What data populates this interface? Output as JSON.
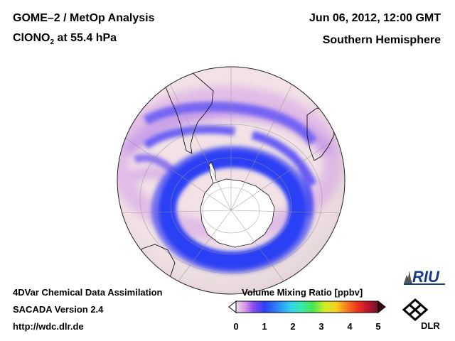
{
  "header": {
    "title": "GOME–2 / MetOp Analysis",
    "species_prefix": "ClONO",
    "species_subscript": "2",
    "species_suffix": " at 55.4 hPa",
    "date": "Jun 06, 2012, 12:00 GMT",
    "region": "Southern Hemisphere"
  },
  "footer": {
    "line1": "4DVar Chemical Data Assimilation",
    "line2": "SACADA Version 2.4",
    "line3": "http://wdc.dlr.de"
  },
  "colorbar": {
    "title": "Volume Mixing Ratio [ppbv]",
    "ticks": [
      "0",
      "1",
      "2",
      "3",
      "4",
      "5"
    ],
    "colors": [
      "#f3dfe7",
      "#d89ae6",
      "#8a4cf0",
      "#2f3ff8",
      "#2b8cf5",
      "#34d0f0",
      "#38e8b0",
      "#49e64a",
      "#c8ee2a",
      "#f6d21e",
      "#f77a1c",
      "#ec2e22",
      "#b4122e",
      "#6a0f2a"
    ]
  },
  "logos": {
    "riu": "RIU",
    "dlr": "DLR"
  },
  "map": {
    "projection": "orthographic, south pole centred",
    "ocean_background": "#f2e2e6",
    "antarctica_fill": "#ffffff",
    "high_ring_color": "#2a40f4",
    "mid_band_color": "#7a52f2"
  }
}
